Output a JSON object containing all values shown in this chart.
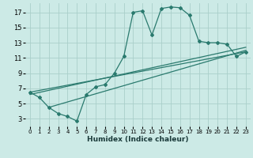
{
  "xlabel": "Humidex (Indice chaleur)",
  "bg_color": "#cceae6",
  "grid_color": "#aacfca",
  "line_color": "#2a7a6e",
  "xlim": [
    -0.5,
    23.5
  ],
  "ylim": [
    2.0,
    18.2
  ],
  "xticks": [
    0,
    1,
    2,
    3,
    4,
    5,
    6,
    7,
    8,
    9,
    10,
    11,
    12,
    13,
    14,
    15,
    16,
    17,
    18,
    19,
    20,
    21,
    22,
    23
  ],
  "yticks": [
    3,
    5,
    7,
    9,
    11,
    13,
    15,
    17
  ],
  "curve1_x": [
    0,
    1,
    2,
    3,
    4,
    5,
    6,
    7,
    8,
    9,
    10,
    11,
    12,
    13,
    14,
    15,
    16,
    17,
    18,
    19,
    20,
    21,
    22,
    23
  ],
  "curve1_y": [
    6.5,
    5.8,
    4.5,
    3.7,
    3.3,
    2.7,
    6.2,
    7.2,
    7.5,
    9.0,
    11.2,
    17.0,
    17.2,
    14.0,
    17.5,
    17.7,
    17.6,
    16.6,
    13.2,
    13.0,
    13.0,
    12.8,
    11.2,
    11.8
  ],
  "line1_x": [
    0,
    23
  ],
  "line1_y": [
    6.5,
    11.8
  ],
  "line2_x": [
    0,
    23
  ],
  "line2_y": [
    6.2,
    12.4
  ],
  "line3_x": [
    2,
    23
  ],
  "line3_y": [
    4.5,
    12.0
  ]
}
